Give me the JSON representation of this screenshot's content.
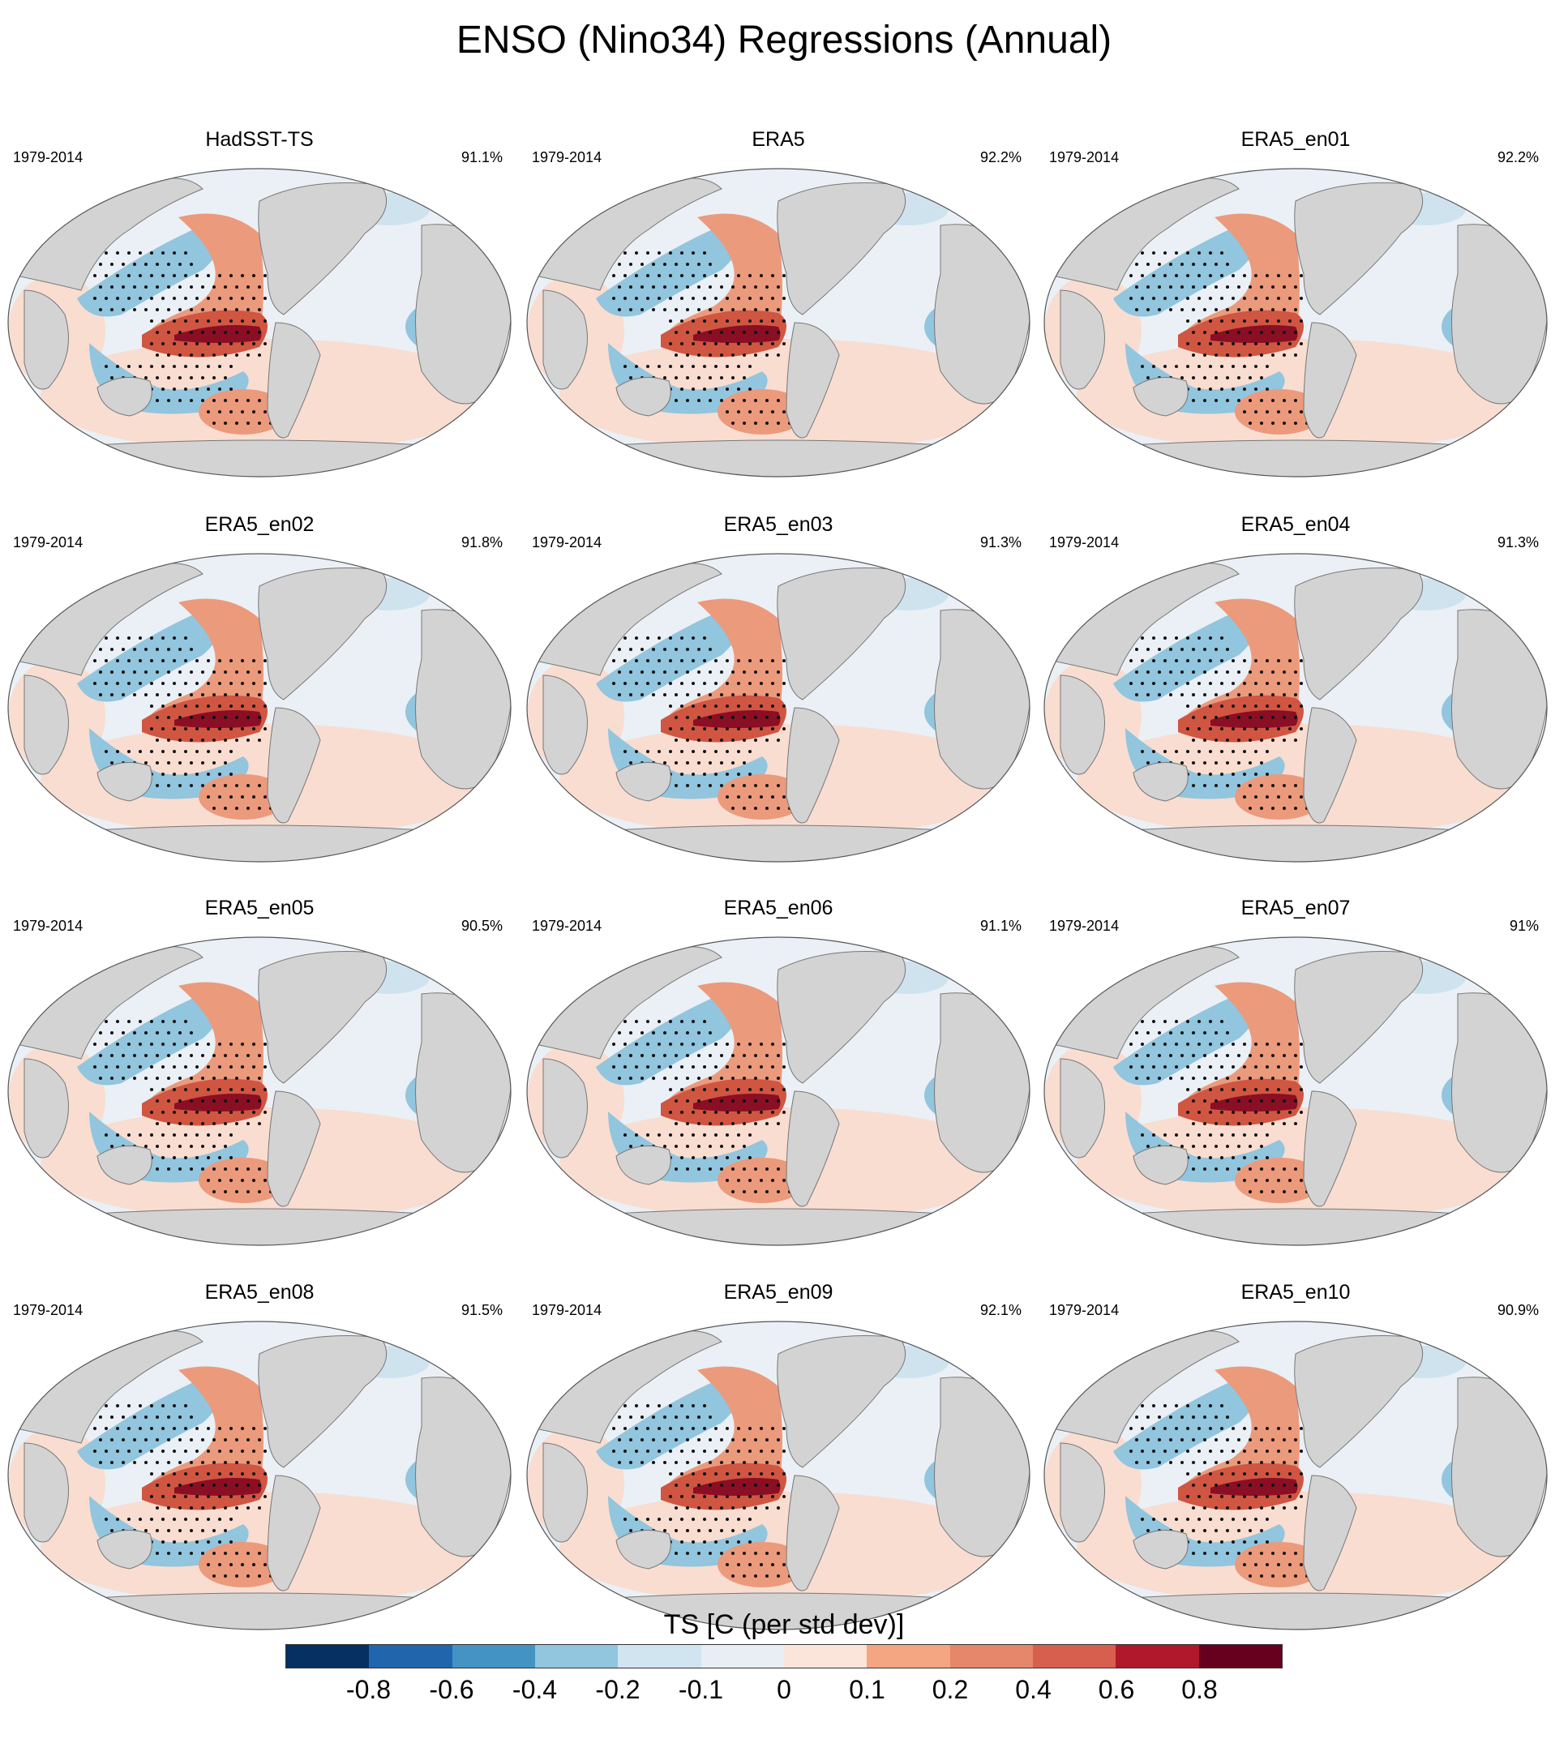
{
  "title": "ENSO (Nino34) Regressions (Annual)",
  "chart_data": {
    "type": "heatmap",
    "projection": "Robinson (Pacific-centered)",
    "variable": "TS [C (per std dev)]",
    "period": "1979-2014",
    "panels": [
      {
        "name": "HadSST-TS",
        "years": "1979-2014",
        "pct": "91.1%"
      },
      {
        "name": "ERA5",
        "years": "1979-2014",
        "pct": "92.2%"
      },
      {
        "name": "ERA5_en01",
        "years": "1979-2014",
        "pct": "92.2%"
      },
      {
        "name": "ERA5_en02",
        "years": "1979-2014",
        "pct": "91.8%"
      },
      {
        "name": "ERA5_en03",
        "years": "1979-2014",
        "pct": "91.3%"
      },
      {
        "name": "ERA5_en04",
        "years": "1979-2014",
        "pct": "91.3%"
      },
      {
        "name": "ERA5_en05",
        "years": "1979-2014",
        "pct": "90.5%"
      },
      {
        "name": "ERA5_en06",
        "years": "1979-2014",
        "pct": "91.1%"
      },
      {
        "name": "ERA5_en07",
        "years": "1979-2014",
        "pct": "91%"
      },
      {
        "name": "ERA5_en08",
        "years": "1979-2014",
        "pct": "91.5%"
      },
      {
        "name": "ERA5_en09",
        "years": "1979-2014",
        "pct": "92.1%"
      },
      {
        "name": "ERA5_en10",
        "years": "1979-2014",
        "pct": "90.9%"
      }
    ],
    "colorbar": {
      "title": "TS [C (per std dev)]",
      "tick_labels": [
        "-0.8",
        "-0.6",
        "-0.4",
        "-0.2",
        "-0.1",
        "0",
        "0.1",
        "0.2",
        "0.4",
        "0.6",
        "0.8"
      ],
      "colors": [
        "#053061",
        "#2166ac",
        "#4393c3",
        "#92c5de",
        "#d1e5f0",
        "#e8eef4",
        "#fbe5da",
        "#f4a582",
        "#e6866a",
        "#d6604d",
        "#b2182b",
        "#67001f"
      ]
    }
  },
  "colors": {
    "land": "#d3d3d3",
    "ocean_neutral": "#eaf0f5",
    "warm_light": "#f9ddd1",
    "warm_mid": "#ec9a7c",
    "warm_strong": "#d05642",
    "warm_core": "#8a0f24",
    "cool_light": "#cfe3ef",
    "cool_mid": "#92c5de",
    "cool_strong": "#5a9cc8"
  }
}
